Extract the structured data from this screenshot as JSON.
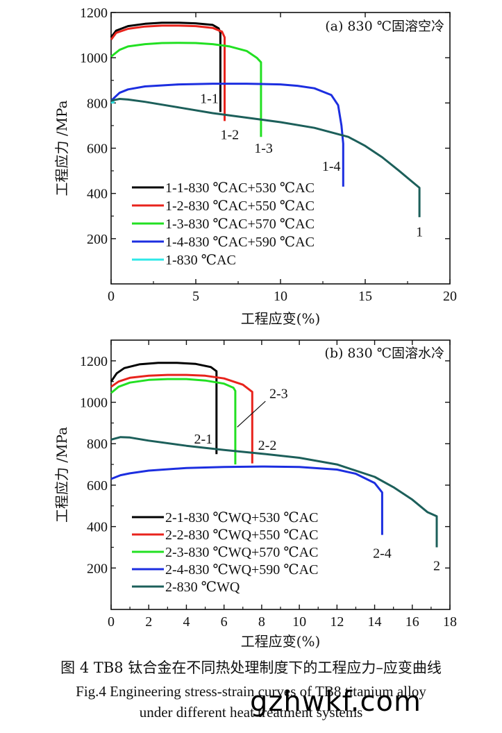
{
  "chart_data": [
    {
      "type": "line",
      "title": "(a) 830 ℃固溶空冷",
      "xlabel": "工程应变(%)",
      "ylabel": "工程应力 /MPa",
      "xlim": [
        0,
        20
      ],
      "ylim": [
        0,
        1200
      ],
      "xticks": [
        0,
        5,
        10,
        15,
        20
      ],
      "yticks": [
        200,
        400,
        600,
        800,
        1000,
        1200
      ],
      "legend_position": "lower-left",
      "series": [
        {
          "name": "1-1-830 ℃AC+530 ℃AC",
          "color": "#000000",
          "label": "1-1",
          "x": [
            0,
            0.3,
            1,
            2,
            3,
            4,
            5,
            6,
            6.35,
            6.45,
            6.45
          ],
          "y": [
            1090,
            1120,
            1140,
            1150,
            1155,
            1155,
            1152,
            1145,
            1130,
            1110,
            760
          ]
        },
        {
          "name": "1-2-830 ℃AC+550 ℃AC",
          "color": "#e8231c",
          "label": "1-2",
          "x": [
            0,
            0.3,
            1,
            2,
            3,
            4,
            5,
            6,
            6.55,
            6.7,
            6.7
          ],
          "y": [
            1080,
            1110,
            1128,
            1138,
            1142,
            1142,
            1140,
            1132,
            1115,
            1090,
            720
          ]
        },
        {
          "name": "1-3-830 ℃AC+570 ℃AC",
          "color": "#22e022",
          "label": "1-3",
          "x": [
            0,
            0.5,
            1,
            2,
            3,
            4,
            5,
            6,
            7,
            8,
            8.6,
            8.85,
            8.85
          ],
          "y": [
            1005,
            1035,
            1050,
            1060,
            1065,
            1066,
            1065,
            1060,
            1050,
            1030,
            1000,
            980,
            650
          ]
        },
        {
          "name": "1-4-830 ℃AC+590 ℃AC",
          "color": "#1c2ee0",
          "label": "1-4",
          "x": [
            0,
            0.5,
            1,
            2,
            4,
            6,
            8,
            10,
            11,
            12,
            13,
            13.4,
            13.6,
            13.7,
            13.7
          ],
          "y": [
            810,
            845,
            860,
            873,
            882,
            885,
            885,
            882,
            876,
            865,
            835,
            790,
            700,
            620,
            430
          ]
        },
        {
          "name": "1-830 ℃AC",
          "color": "#2ee8e8",
          "label": "",
          "x": [
            0,
            0.2
          ],
          "y": [
            800,
            805
          ]
        },
        {
          "name": "",
          "color": "#1c5f5a",
          "label": "1",
          "x": [
            0,
            0.5,
            1,
            2,
            4,
            6,
            8,
            10,
            12,
            14,
            15,
            16,
            17,
            17.8,
            18.2,
            18.2
          ],
          "y": [
            810,
            818,
            815,
            805,
            780,
            755,
            735,
            715,
            690,
            650,
            610,
            560,
            500,
            450,
            425,
            295
          ]
        }
      ],
      "annotations": [
        {
          "text": "1-1",
          "x": 5.8,
          "y": 800
        },
        {
          "text": "1-2",
          "x": 7.0,
          "y": 640
        },
        {
          "text": "1-3",
          "x": 9.0,
          "y": 580
        },
        {
          "text": "1-4",
          "x": 13.0,
          "y": 500
        },
        {
          "text": "1",
          "x": 18.2,
          "y": 210
        }
      ]
    },
    {
      "type": "line",
      "title": "(b) 830 ℃固溶水冷",
      "xlabel": "工程应变(%)",
      "ylabel": "工程应力 /MPa",
      "xlim": [
        0,
        18
      ],
      "ylim": [
        0,
        1300
      ],
      "xticks": [
        0,
        2,
        4,
        6,
        8,
        10,
        12,
        14,
        16,
        18
      ],
      "yticks": [
        200,
        400,
        600,
        800,
        1000,
        1200
      ],
      "legend_position": "lower-left",
      "series": [
        {
          "name": "2-1-830 ℃WQ+530 ℃AC",
          "color": "#000000",
          "label": "2-1",
          "x": [
            0,
            0.3,
            0.7,
            1.5,
            2.5,
            3.5,
            4.5,
            5.3,
            5.6,
            5.6
          ],
          "y": [
            1100,
            1140,
            1165,
            1183,
            1190,
            1190,
            1185,
            1170,
            1150,
            750
          ]
        },
        {
          "name": "2-2-830 ℃WQ+550 ℃AC",
          "color": "#e8231c",
          "label": "2-2",
          "x": [
            0,
            0.4,
            1,
            2,
            3,
            4,
            5,
            6,
            7,
            7.5,
            7.5
          ],
          "y": [
            1075,
            1100,
            1118,
            1128,
            1132,
            1132,
            1128,
            1115,
            1085,
            1050,
            705
          ]
        },
        {
          "name": "2-3-830 ℃WQ+570 ℃AC",
          "color": "#22e022",
          "label": "2-3",
          "x": [
            0,
            0.4,
            1,
            2,
            3,
            4,
            5,
            6,
            6.5,
            6.6,
            6.6
          ],
          "y": [
            1045,
            1075,
            1095,
            1108,
            1112,
            1112,
            1105,
            1090,
            1070,
            1055,
            700
          ]
        },
        {
          "name": "2-4-830 ℃WQ+590 ℃AC",
          "color": "#1c2ee0",
          "label": "2-4",
          "x": [
            0,
            0.5,
            1,
            2,
            4,
            6,
            8,
            10,
            12,
            13,
            14,
            14.4,
            14.4
          ],
          "y": [
            630,
            648,
            657,
            670,
            683,
            688,
            690,
            688,
            675,
            655,
            610,
            565,
            360
          ]
        },
        {
          "name": "2-830 ℃WQ",
          "color": "#1c5f5a",
          "label": "2",
          "x": [
            0,
            0.5,
            1,
            2,
            4,
            6,
            8,
            10,
            12,
            14,
            15,
            16,
            16.8,
            17.3,
            17.3
          ],
          "y": [
            820,
            832,
            830,
            815,
            790,
            770,
            752,
            732,
            700,
            640,
            590,
            530,
            470,
            450,
            300
          ]
        }
      ],
      "annotations": [
        {
          "text": "2-1",
          "x": 4.9,
          "y": 800
        },
        {
          "text": "2-3",
          "x": 8.9,
          "y": 1020
        },
        {
          "text": "2-2",
          "x": 8.3,
          "y": 770
        },
        {
          "text": "2-4",
          "x": 14.4,
          "y": 250
        },
        {
          "text": "2",
          "x": 17.3,
          "y": 190
        }
      ]
    }
  ],
  "caption": {
    "zh": "图 4  TB8 钛合金在不同热处理制度下的工程应力–应变曲线",
    "en_line1": "Fig.4  Engineering stress-strain curves of TB8 titanium alloy",
    "en_line2": "under different heat treatment systems"
  },
  "watermark": "gzhwkf.com"
}
